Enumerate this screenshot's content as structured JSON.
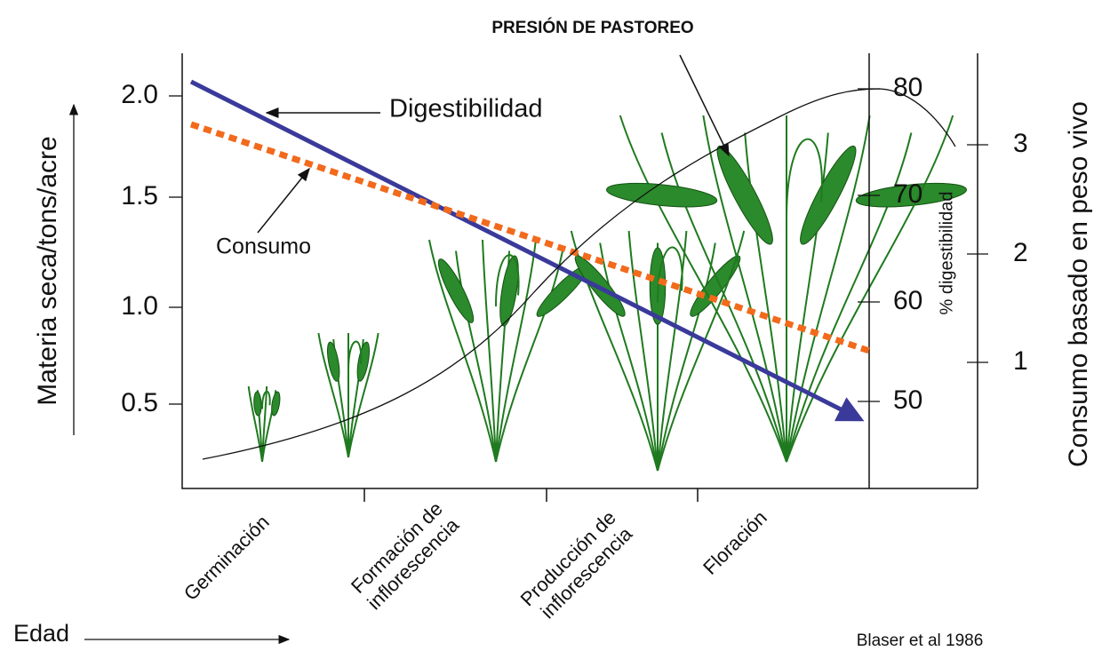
{
  "header": {
    "title": "PRESIÓN DE PASTOREO"
  },
  "axes": {
    "left_label": "Materia seca/tons/acre",
    "left_ticks": [
      "2.0",
      "1.5",
      "1.0",
      "0.5"
    ],
    "digestibility_label": "% digestibilidad",
    "digestibility_ticks": [
      "80",
      "70",
      "60",
      "50"
    ],
    "right_label": "Consumo basado en peso vivo",
    "right_ticks": [
      "3",
      "2",
      "1"
    ],
    "x_label": "Edad"
  },
  "annotations": {
    "digestibility": "Digestibilidad",
    "consumption": "Consumo"
  },
  "stages": [
    [
      "Germinación"
    ],
    [
      "Formación de",
      "inflorescencia"
    ],
    [
      "Producción de",
      "inflorescencia"
    ],
    [
      "Floración"
    ]
  ],
  "source": "Blaser et al 1986"
}
